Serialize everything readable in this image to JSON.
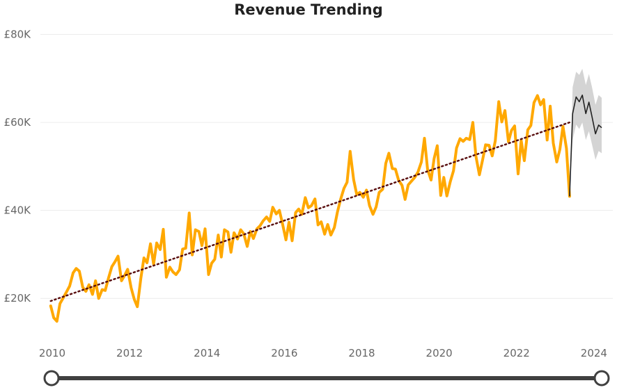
{
  "colors": {
    "actual": "#FFA800",
    "forecast": "#222222",
    "forecast_band": "#CFCFCF",
    "trend": "#5A1010",
    "grid": "#ECECEC",
    "slider": "#404040"
  },
  "chart_data": {
    "type": "line",
    "title": "Revenue Trending",
    "xlabel": "",
    "ylabel": "",
    "xlim": [
      2010.0,
      2024.2
    ],
    "ylim": [
      10000,
      80000
    ],
    "grid": true,
    "x_ticks": [
      "2010",
      "2012",
      "2014",
      "2016",
      "2018",
      "2020",
      "2022",
      "2024"
    ],
    "y_ticks": [
      "£20K",
      "£40K",
      "£60K",
      "£80K"
    ],
    "y_tick_values": [
      20000,
      40000,
      60000,
      80000
    ],
    "series": [
      {
        "role": "actual",
        "x": [
          2009.96,
          2010.04,
          2010.12,
          2010.2,
          2010.29,
          2010.37,
          2010.45,
          2010.54,
          2010.62,
          2010.7,
          2010.79,
          2010.87,
          2010.95,
          2011.04,
          2011.12,
          2011.2,
          2011.29,
          2011.37,
          2011.45,
          2011.54,
          2011.62,
          2011.7,
          2011.79,
          2011.87,
          2011.95,
          2012.04,
          2012.12,
          2012.2,
          2012.29,
          2012.37,
          2012.45,
          2012.54,
          2012.62,
          2012.7,
          2012.79,
          2012.87,
          2012.95,
          2013.04,
          2013.12,
          2013.2,
          2013.29,
          2013.37,
          2013.45,
          2013.54,
          2013.62,
          2013.7,
          2013.79,
          2013.87,
          2013.95,
          2014.04,
          2014.12,
          2014.2,
          2014.29,
          2014.37,
          2014.45,
          2014.54,
          2014.62,
          2014.7,
          2014.79,
          2014.87,
          2014.95,
          2015.04,
          2015.12,
          2015.2,
          2015.29,
          2015.37,
          2015.45,
          2015.54,
          2015.62,
          2015.7,
          2015.79,
          2015.87,
          2015.95,
          2016.04,
          2016.12,
          2016.2,
          2016.29,
          2016.37,
          2016.45,
          2016.54,
          2016.62,
          2016.7,
          2016.79,
          2016.87,
          2016.95,
          2017.04,
          2017.12,
          2017.2,
          2017.29,
          2017.37,
          2017.45,
          2017.54,
          2017.62,
          2017.7,
          2017.79,
          2017.87,
          2017.95,
          2018.04,
          2018.12,
          2018.2,
          2018.29,
          2018.37,
          2018.45,
          2018.54,
          2018.62,
          2018.7,
          2018.79,
          2018.87,
          2018.95,
          2019.04,
          2019.12,
          2019.2,
          2019.29,
          2019.37,
          2019.45,
          2019.54,
          2019.62,
          2019.7,
          2019.79,
          2019.87,
          2019.95,
          2020.04,
          2020.12,
          2020.2,
          2020.29,
          2020.37,
          2020.45,
          2020.54,
          2020.62,
          2020.7,
          2020.79,
          2020.87,
          2020.95,
          2021.04,
          2021.12,
          2021.2,
          2021.29,
          2021.37,
          2021.45,
          2021.54,
          2021.62,
          2021.7,
          2021.79,
          2021.87,
          2021.95,
          2022.04,
          2022.12,
          2022.2,
          2022.29,
          2022.37,
          2022.45,
          2022.54,
          2022.62,
          2022.7,
          2022.79,
          2022.87,
          2022.95,
          2023.04,
          2023.12,
          2023.2,
          2023.29,
          2023.37
        ],
        "y": [
          18300,
          15600,
          14800,
          18800,
          20200,
          21500,
          22800,
          25800,
          26800,
          26200,
          22500,
          21600,
          23100,
          20900,
          24000,
          20000,
          22000,
          21800,
          24500,
          27200,
          28300,
          29600,
          24000,
          25200,
          26600,
          22400,
          19800,
          18100,
          24500,
          29200,
          28100,
          32400,
          27800,
          32600,
          31100,
          35700,
          24800,
          27100,
          26000,
          25400,
          26500,
          31200,
          31400,
          39400,
          29900,
          35600,
          35200,
          32000,
          35800,
          25400,
          28000,
          28900,
          34400,
          29400,
          35600,
          35100,
          30500,
          34900,
          33500,
          35600,
          34700,
          31800,
          35200,
          33600,
          35800,
          36500,
          37600,
          38500,
          37500,
          40700,
          39200,
          40000,
          37000,
          33300,
          37300,
          33100,
          39500,
          40300,
          39100,
          42900,
          40600,
          41100,
          42600,
          36700,
          37400,
          34600,
          36800,
          34400,
          36100,
          39600,
          42400,
          45000,
          46400,
          53400,
          47000,
          43600,
          44100,
          43000,
          44600,
          41100,
          39100,
          40800,
          44100,
          44800,
          50700,
          53000,
          49500,
          49400,
          46900,
          45700,
          42500,
          45800,
          46700,
          47500,
          48700,
          51000,
          56400,
          49300,
          46900,
          51800,
          54700,
          43400,
          47500,
          43300,
          46600,
          49000,
          54200,
          56300,
          55700,
          56400,
          56100,
          60000,
          52300,
          48100,
          51400,
          54900,
          54800,
          52400,
          55800,
          64700,
          60100,
          62700,
          55600,
          58200,
          59200,
          48300,
          55900,
          51300,
          58300,
          59300,
          64500,
          66100,
          64000,
          65200,
          56000,
          63700,
          55300,
          51000,
          53900,
          59100,
          54100,
          43200
        ]
      },
      {
        "role": "forecast",
        "x": [
          2023.37,
          2023.45,
          2023.54,
          2023.62,
          2023.7,
          2023.79,
          2023.87,
          2023.95,
          2024.04,
          2024.12,
          2024.2
        ],
        "y": [
          43200,
          62000,
          65800,
          64700,
          66200,
          62000,
          64600,
          61300,
          57400,
          59400,
          58800
        ],
        "band_low": [
          43200,
          56000,
          59500,
          58500,
          60000,
          56000,
          58000,
          55000,
          51500,
          53500,
          53000
        ],
        "band_high": [
          43200,
          68000,
          71500,
          70800,
          72200,
          68500,
          71000,
          68000,
          64000,
          66200,
          65600
        ]
      },
      {
        "role": "trend",
        "x": [
          2009.96,
          2023.37
        ],
        "y": [
          19400,
          60000
        ]
      }
    ],
    "slider": {
      "range": [
        2010,
        2024
      ]
    }
  }
}
